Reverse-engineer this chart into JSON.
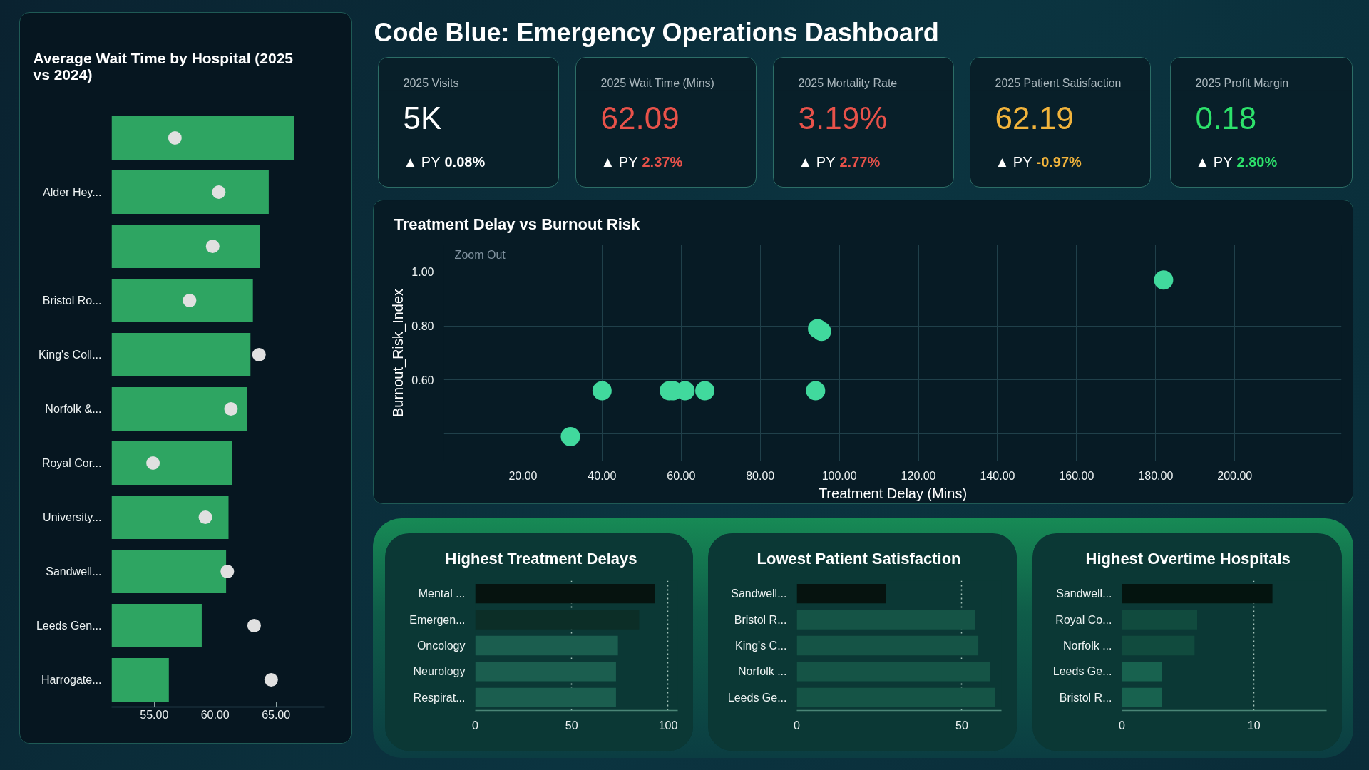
{
  "chart_data": [
    {
      "type": "bar",
      "orientation": "horizontal",
      "title": "Average Wait Time by Hospital (2025 vs 2024)",
      "categories": [
        null,
        "Alder Hey...",
        null,
        "Bristol Ro...",
        "King's Coll...",
        "Norfolk &...",
        "Royal Cor...",
        "University...",
        "Sandwell...",
        "Leeds Gen...",
        "Harrogate..."
      ],
      "series": [
        {
          "color": "#2ea562",
          "values": [
            66.5,
            64.4,
            63.7,
            63.1,
            62.9,
            62.6,
            61.4,
            61.1,
            60.9,
            58.9,
            56.2
          ]
        },
        {
          "type": "scatter",
          "color": "#e0e0e0",
          "values": [
            56.7,
            60.3,
            59.8,
            57.9,
            63.6,
            61.3,
            54.9,
            59.2,
            61.0,
            63.2,
            64.6
          ]
        }
      ],
      "xlim": [
        51.5,
        69
      ],
      "xticks": [
        {
          "value": 55,
          "label": "55.00"
        },
        {
          "value": 60,
          "label": "60.00"
        },
        {
          "value": 65,
          "label": "65.00"
        }
      ],
      "marker": "circle"
    },
    {
      "type": "other",
      "title": "Code Blue: Emergency Operations Dashboard"
    },
    {
      "type": "other",
      "title": "2025 Visits",
      "annotations": [
        "5K",
        "▲ PY",
        "0.08%"
      ],
      "color": "#ffffff"
    },
    {
      "type": "other",
      "title": "2025 Wait Time (Mins)",
      "annotations": [
        "62.09",
        "▲ PY",
        "2.37%"
      ],
      "color": "#e8524a"
    },
    {
      "type": "other",
      "title": "2025 Mortality Rate",
      "annotations": [
        "3.19%",
        "▲ PY",
        "2.77%"
      ],
      "color": "#e8524a"
    },
    {
      "type": "other",
      "title": "2025 Patient Satisfaction",
      "annotations": [
        "62.19",
        "▲ PY",
        "-0.97%"
      ],
      "color": "#f2b43c"
    },
    {
      "type": "other",
      "title": "2025 Profit Margin",
      "annotations": [
        "0.18",
        "▲ PY",
        "2.80%"
      ],
      "color": "#2de26b"
    },
    {
      "type": "scatter",
      "title": "Treatment Delay vs Burnout Risk",
      "xlabel": "Treatment Delay (Mins)",
      "ylabel": "Burnout_Risk_Index",
      "x": [
        32,
        40,
        57,
        58,
        61,
        66,
        94,
        94.5,
        95.5,
        182
      ],
      "values": [
        0.39,
        0.56,
        0.56,
        0.56,
        0.56,
        0.56,
        0.56,
        0.79,
        0.78,
        0.97
      ],
      "color": "#41d99d",
      "xlim": [
        0,
        227
      ],
      "ylim": [
        0.3,
        1.1
      ],
      "xticks": [
        {
          "value": 20,
          "label": "20.00"
        },
        {
          "value": 40,
          "label": "40.00"
        },
        {
          "value": 60,
          "label": "60.00"
        },
        {
          "value": 80,
          "label": "80.00"
        },
        {
          "value": 100,
          "label": "100.00"
        },
        {
          "value": 120,
          "label": "120.00"
        },
        {
          "value": 140,
          "label": "140.00"
        },
        {
          "value": 160,
          "label": "160.00"
        },
        {
          "value": 180,
          "label": "180.00"
        },
        {
          "value": 200,
          "label": "200.00"
        }
      ],
      "yticks": [
        {
          "value": 0.4,
          "label": null
        },
        {
          "value": 0.6,
          "label": "0.60"
        },
        {
          "value": 0.8,
          "label": "0.80"
        },
        {
          "value": 1.0,
          "label": "1.00"
        }
      ],
      "grid": true,
      "marker": "circle",
      "annotations": [
        "Zoom Out"
      ]
    },
    {
      "type": "bar",
      "orientation": "horizontal",
      "title": "Highest Treatment Delays",
      "categories": [
        "Mental ...",
        "Emergen...",
        "Oncology",
        "Neurology",
        "Respirat..."
      ],
      "values": [
        93,
        85,
        74,
        73,
        73
      ],
      "colors": [
        "#06130f",
        "#0c2e27",
        "#1b5e4f",
        "#1b5e4f",
        "#1b5e4f"
      ],
      "xlim": [
        0,
        105
      ],
      "xticks": [
        0,
        50,
        100
      ],
      "grid": "x"
    },
    {
      "type": "bar",
      "orientation": "horizontal",
      "title": "Lowest Patient Satisfaction",
      "categories": [
        "Sandwell...",
        "Bristol R...",
        "King's C...",
        "Norfolk ...",
        "Leeds Ge..."
      ],
      "values": [
        27,
        54,
        55,
        58.5,
        60
      ],
      "colors": [
        "#06130f",
        "#155446",
        "#155446",
        "#155446",
        "#155446"
      ],
      "xlim": [
        0,
        62
      ],
      "xticks": [
        0,
        50
      ],
      "grid": "x"
    },
    {
      "type": "bar",
      "orientation": "horizontal",
      "title": "Highest Overtime Hospitals",
      "categories": [
        "Sandwell...",
        "Royal Co...",
        "Norfolk ...",
        "Leeds Ge...",
        "Bristol R..."
      ],
      "values": [
        11.4,
        5.7,
        5.5,
        3,
        3
      ],
      "colors": [
        "#04140f",
        "#114b3e",
        "#114b3e",
        "#18624f",
        "#18624f"
      ],
      "xlim": [
        0,
        15.5
      ],
      "xticks": [
        0,
        10
      ],
      "grid": "x"
    }
  ]
}
